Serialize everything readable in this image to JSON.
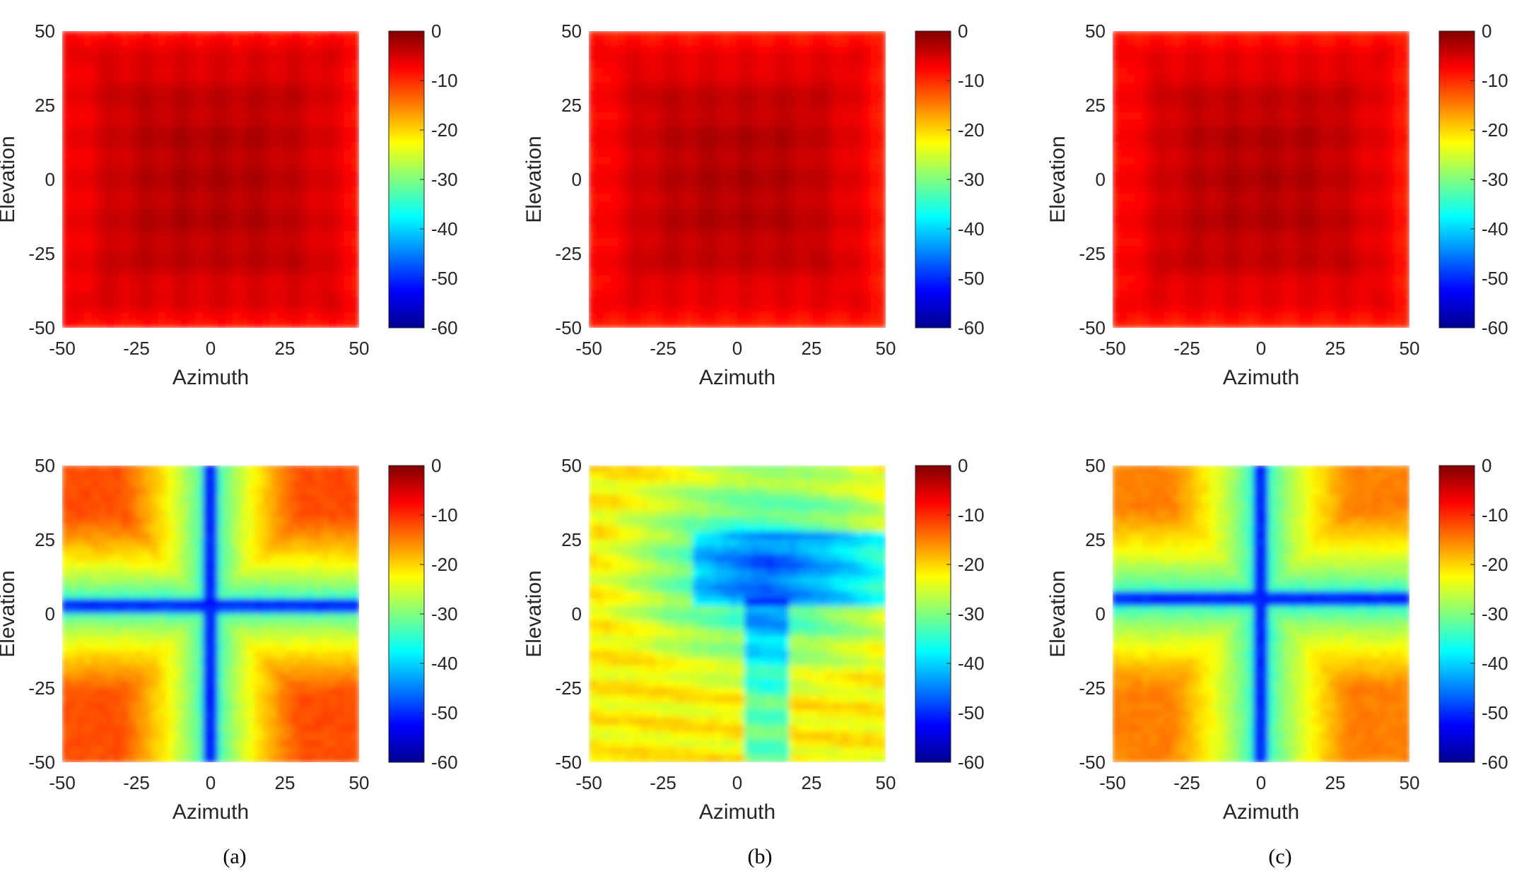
{
  "chart_data": [
    {
      "type": "heatmap",
      "panel": "a",
      "row": "top",
      "xlabel": "Azimuth",
      "ylabel": "Elevation",
      "xlim": [
        -50,
        50
      ],
      "ylim": [
        -50,
        50
      ],
      "xticks": [
        "-50",
        "-25",
        "0",
        "25",
        "50"
      ],
      "yticks": [
        "50",
        "25",
        "0",
        "-25",
        "-50"
      ],
      "colorbar": {
        "ticks": [
          "0",
          "-10",
          "-20",
          "-30",
          "-40",
          "-50",
          "-60"
        ],
        "range": [
          -60,
          0
        ]
      },
      "pattern": "near-uniform",
      "center_level_db": -3,
      "edge_level_db": -8
    },
    {
      "type": "heatmap",
      "panel": "b",
      "row": "top",
      "xlabel": "Azimuth",
      "ylabel": "Elevation",
      "xlim": [
        -50,
        50
      ],
      "ylim": [
        -50,
        50
      ],
      "xticks": [
        "-50",
        "-25",
        "0",
        "25",
        "50"
      ],
      "yticks": [
        "50",
        "25",
        "0",
        "-25",
        "-50"
      ],
      "colorbar": {
        "ticks": [
          "0",
          "-10",
          "-20",
          "-30",
          "-40",
          "-50",
          "-60"
        ],
        "range": [
          -60,
          0
        ]
      },
      "pattern": "near-uniform",
      "center_level_db": -3,
      "edge_level_db": -9
    },
    {
      "type": "heatmap",
      "panel": "c",
      "row": "top",
      "xlabel": "Azimuth",
      "ylabel": "Elevation",
      "xlim": [
        -50,
        50
      ],
      "ylim": [
        -50,
        50
      ],
      "xticks": [
        "-50",
        "-25",
        "0",
        "25",
        "50"
      ],
      "yticks": [
        "50",
        "25",
        "0",
        "-25",
        "-50"
      ],
      "colorbar": {
        "ticks": [
          "0",
          "-10",
          "-20",
          "-30",
          "-40",
          "-50",
          "-60"
        ],
        "range": [
          -60,
          0
        ]
      },
      "pattern": "near-uniform",
      "center_level_db": -3,
      "edge_level_db": -9
    },
    {
      "type": "heatmap",
      "panel": "a",
      "row": "bottom",
      "xlabel": "Azimuth",
      "ylabel": "Elevation",
      "xlim": [
        -50,
        50
      ],
      "ylim": [
        -50,
        50
      ],
      "xticks": [
        "-50",
        "-25",
        "0",
        "25",
        "50"
      ],
      "yticks": [
        "50",
        "25",
        "0",
        "-25",
        "-50"
      ],
      "colorbar": {
        "ticks": [
          "0",
          "-10",
          "-20",
          "-30",
          "-40",
          "-50",
          "-60"
        ],
        "range": [
          -60,
          0
        ]
      },
      "pattern": "cross-null",
      "null_azimuth": 0,
      "null_elevation": 3,
      "corner_level_db": -12,
      "min_level_db": -55
    },
    {
      "type": "heatmap",
      "panel": "b",
      "row": "bottom",
      "xlabel": "Azimuth",
      "ylabel": "Elevation",
      "xlim": [
        -50,
        50
      ],
      "ylim": [
        -50,
        50
      ],
      "xticks": [
        "-50",
        "-25",
        "0",
        "25",
        "50"
      ],
      "yticks": [
        "50",
        "25",
        "0",
        "-25",
        "-50"
      ],
      "colorbar": {
        "ticks": [
          "0",
          "-10",
          "-20",
          "-30",
          "-40",
          "-50",
          "-60"
        ],
        "range": [
          -60,
          0
        ]
      },
      "pattern": "diffuse-null",
      "null_azimuth": 10,
      "null_elevation": 15,
      "corner_level_db": -22,
      "min_level_db": -55
    },
    {
      "type": "heatmap",
      "panel": "c",
      "row": "bottom",
      "xlabel": "Azimuth",
      "ylabel": "Elevation",
      "xlim": [
        -50,
        50
      ],
      "ylim": [
        -50,
        50
      ],
      "xticks": [
        "-50",
        "-25",
        "0",
        "25",
        "50"
      ],
      "yticks": [
        "50",
        "25",
        "0",
        "-25",
        "-50"
      ],
      "colorbar": {
        "ticks": [
          "0",
          "-10",
          "-20",
          "-30",
          "-40",
          "-50",
          "-60"
        ],
        "range": [
          -60,
          0
        ]
      },
      "pattern": "cross-null",
      "null_azimuth": 0,
      "null_elevation": 5,
      "corner_level_db": -15,
      "min_level_db": -55
    }
  ],
  "captions": [
    "(a)",
    "(b)",
    "(c)"
  ]
}
